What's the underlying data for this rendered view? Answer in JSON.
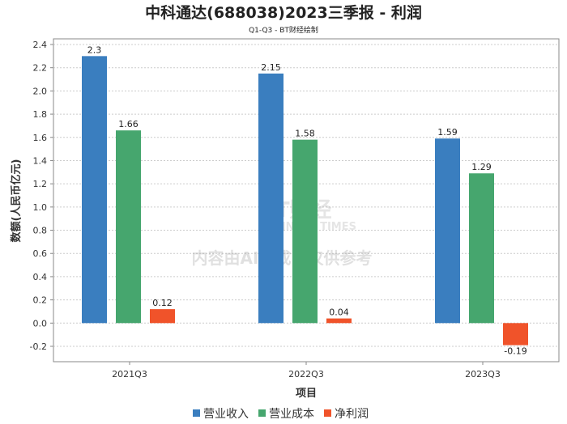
{
  "chart_data": {
    "type": "bar",
    "title": "中科通达(688038)2023三季报 - 利润",
    "subtitle": "Q1-Q3 - BT财经绘制",
    "xlabel": "项目",
    "ylabel": "数额(人民币亿元)",
    "categories": [
      "2021Q3",
      "2022Q3",
      "2023Q3"
    ],
    "series": [
      {
        "name": "营业收入",
        "color": "#3a7ebf",
        "values": [
          2.3,
          2.15,
          1.59
        ]
      },
      {
        "name": "营业成本",
        "color": "#46a66e",
        "values": [
          1.66,
          1.58,
          1.29
        ]
      },
      {
        "name": "净利润",
        "color": "#f0532a",
        "values": [
          0.12,
          0.04,
          -0.19
        ]
      }
    ],
    "data_labels": [
      [
        "2.3",
        "2.15",
        "1.59"
      ],
      [
        "1.66",
        "1.58",
        "1.29"
      ],
      [
        "0.12",
        "0.04",
        "-0.19"
      ]
    ],
    "ylim": [
      -0.2,
      2.4
    ],
    "yticks": [
      "-0.2",
      "0.0",
      "0.2",
      "0.4",
      "0.6",
      "0.8",
      "1.0",
      "1.2",
      "1.4",
      "1.6",
      "1.8",
      "2.0",
      "2.2",
      "2.4"
    ],
    "grid": true,
    "legend": "bottom"
  },
  "watermark": {
    "logo": "BT财经",
    "logo_sub": "BUSINESS TIMES",
    "notice": "内容由AI生成，仅供参考"
  }
}
